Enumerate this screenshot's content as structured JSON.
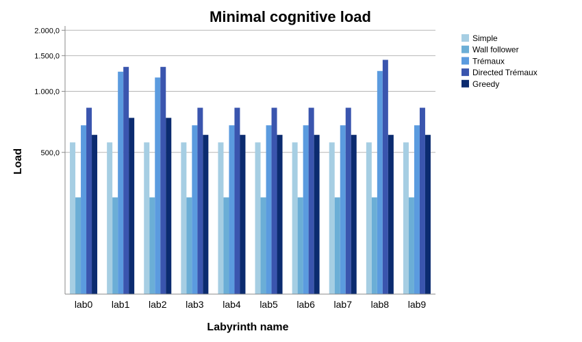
{
  "chart_data": {
    "type": "bar",
    "title": "Minimal cognitive load",
    "xlabel": "Labyrinth name",
    "ylabel": "Load",
    "yscale": "log",
    "ylim": [
      100,
      2100
    ],
    "yticks": [
      500,
      1000,
      1500,
      2000
    ],
    "ytick_labels": [
      "500,0",
      "1.000,0",
      "1.500,0",
      "2.000,0"
    ],
    "grid": true,
    "legend_position": "top-right",
    "categories": [
      "lab0",
      "lab1",
      "lab2",
      "lab3",
      "lab4",
      "lab5",
      "lab6",
      "lab7",
      "lab8",
      "lab9"
    ],
    "series": [
      {
        "name": "Simple",
        "color": "#a6cee3",
        "values": [
          560,
          560,
          560,
          560,
          560,
          560,
          560,
          560,
          560,
          560
        ]
      },
      {
        "name": "Wall follower",
        "color": "#6baed6",
        "values": [
          300,
          300,
          300,
          300,
          300,
          300,
          300,
          300,
          300,
          300
        ]
      },
      {
        "name": "Trémaux",
        "color": "#5b9bdf",
        "values": [
          680,
          1250,
          1170,
          680,
          680,
          680,
          680,
          680,
          1260,
          680
        ]
      },
      {
        "name": "Directed Trémaux",
        "color": "#3a55ae",
        "values": [
          830,
          1320,
          1320,
          830,
          830,
          830,
          830,
          830,
          1430,
          830
        ]
      },
      {
        "name": "Greedy",
        "color": "#0b2b6f",
        "values": [
          610,
          740,
          740,
          610,
          610,
          610,
          610,
          610,
          610,
          610
        ]
      }
    ]
  }
}
